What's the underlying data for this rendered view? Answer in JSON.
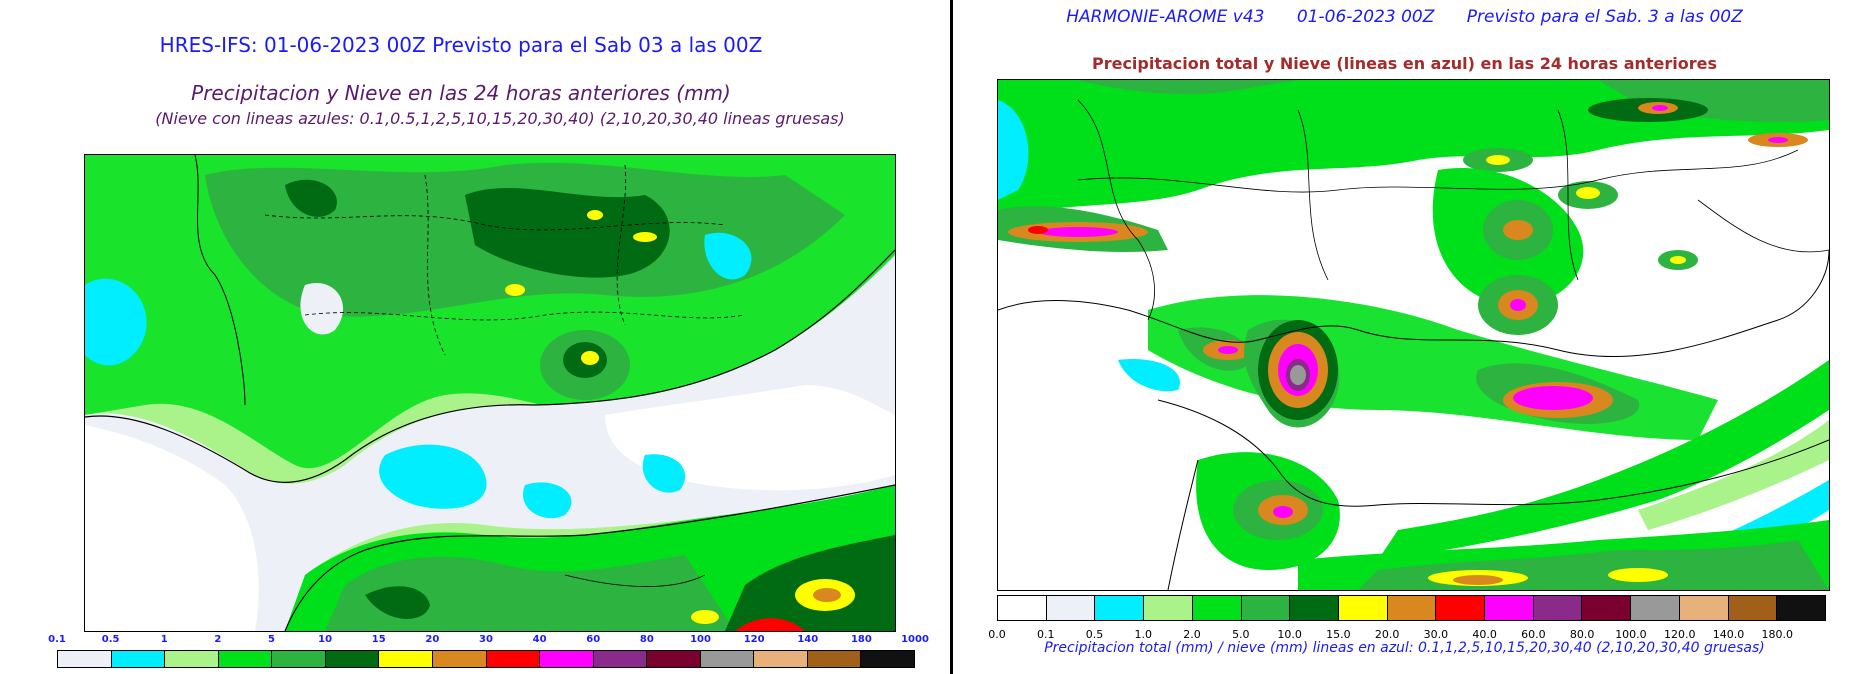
{
  "left": {
    "title": "HRES-IFS: 01-06-2023 00Z Previsto para el Sab 03 a las 00Z",
    "subtitle": "Precipitacion y Nieve en las 24 horas anteriores (mm)",
    "note": "(Nieve con lineas azules: 0.1,0.5,1,2,5,10,15,20,30,40)  (2,10,20,30,40 lineas gruesas)",
    "title_color": "#1a1aff",
    "subtitle_color": "#5a1a6e",
    "colorbar": {
      "labels": [
        "0.1",
        "0.5",
        "1",
        "2",
        "5",
        "10",
        "15",
        "20",
        "30",
        "40",
        "60",
        "80",
        "100",
        "120",
        "140",
        "180",
        "1000"
      ],
      "colors": [
        "#eef0f8",
        "#00eeff",
        "#aaf28a",
        "#00e01a",
        "#2db33f",
        "#006b13",
        "#ffff00",
        "#d9871f",
        "#ff0000",
        "#ff00ff",
        "#8a2a8a",
        "#7a0030",
        "#999999",
        "#e8b07a",
        "#a0601a",
        "#111111"
      ],
      "label_color": "#1a1aff"
    }
  },
  "right": {
    "header": "HARMONIE-AROME v43      01-06-2023 00Z      Previsto para el Sab. 3 a las 00Z",
    "header_color": "#1a1aff",
    "title": "Precipitacion total y Nieve (lineas en azul) en las 24 horas anteriores",
    "title_color": "#a52a2a",
    "caption": "Precipitacion total (mm) / nieve (mm) lineas en azul: 0.1,1,2,5,10,15,20,30,40  (2,10,20,30,40 gruesas)",
    "caption_color": "#1a1aff",
    "colorbar": {
      "labels": [
        "0.0",
        "0.1",
        "0.5",
        "1.0",
        "2.0",
        "5.0",
        "10.0",
        "15.0",
        "20.0",
        "30.0",
        "40.0",
        "60.0",
        "80.0",
        "100.0",
        "120.0",
        "140.0",
        "180.0"
      ],
      "colors": [
        "#ffffff",
        "#eef0f8",
        "#00eeff",
        "#aaf28a",
        "#00e01a",
        "#2db33f",
        "#006b13",
        "#ffff00",
        "#d9871f",
        "#ff0000",
        "#ff00ff",
        "#8a2a8a",
        "#7a0030",
        "#999999",
        "#e8b07a",
        "#a0601a",
        "#111111"
      ],
      "label_color": "#000000"
    }
  }
}
